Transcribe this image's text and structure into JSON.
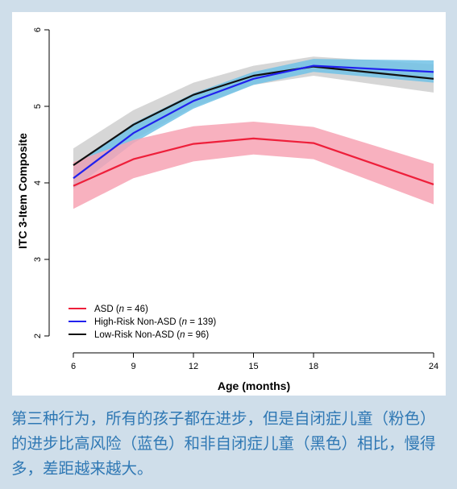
{
  "chart_data": {
    "type": "line",
    "xlabel": "Age (months)",
    "ylabel": "ITC 3-Item Composite",
    "x": [
      6,
      9,
      12,
      15,
      18,
      24
    ],
    "x_ticks": [
      "6",
      "9",
      "12",
      "15",
      "18",
      "24"
    ],
    "y_ticks": [
      "2",
      "3",
      "4",
      "5",
      "6"
    ],
    "xlim": [
      6,
      24
    ],
    "ylim": [
      2,
      6
    ],
    "grid": false,
    "legend_position": "bottom-left",
    "series": [
      {
        "name": "ASD",
        "legend_prefix": "ASD (",
        "legend_n": "n",
        "legend_suffix": " = 46)",
        "color": "#ee1f3a",
        "band_color": "#f7a3b4",
        "values": [
          3.96,
          4.31,
          4.51,
          4.58,
          4.52,
          3.98
        ],
        "lower": [
          3.66,
          4.06,
          4.28,
          4.37,
          4.31,
          3.72
        ],
        "upper": [
          4.27,
          4.56,
          4.74,
          4.8,
          4.73,
          4.25
        ]
      },
      {
        "name": "High-Risk Non-ASD",
        "legend_prefix": "High-Risk Non-ASD (",
        "legend_n": "n",
        "legend_suffix": " = 139)",
        "color": "#2121ee",
        "band_color": "#71c2e6",
        "values": [
          4.06,
          4.65,
          5.07,
          5.36,
          5.53,
          5.45
        ],
        "lower": [
          3.92,
          4.52,
          4.97,
          5.28,
          5.45,
          5.31
        ],
        "upper": [
          4.2,
          4.78,
          5.17,
          5.45,
          5.62,
          5.6
        ]
      },
      {
        "name": "Low-Risk Non-ASD",
        "legend_prefix": "Low-Risk Non-ASD (",
        "legend_n": "n",
        "legend_suffix": " = 96)",
        "color": "#111111",
        "band_color": "#c8c8c8",
        "values": [
          4.23,
          4.76,
          5.15,
          5.4,
          5.52,
          5.36
        ],
        "lower": [
          4.01,
          4.56,
          4.99,
          5.28,
          5.4,
          5.18
        ],
        "upper": [
          4.45,
          4.95,
          5.31,
          5.53,
          5.65,
          5.55
        ]
      }
    ]
  },
  "caption": {
    "text": "第三种行为，所有的孩子都在进步，但是自闭症儿童（粉色）的进步比高风险（蓝色）和非自闭症儿童（黑色）相比，慢得多，差距越来越大。"
  }
}
